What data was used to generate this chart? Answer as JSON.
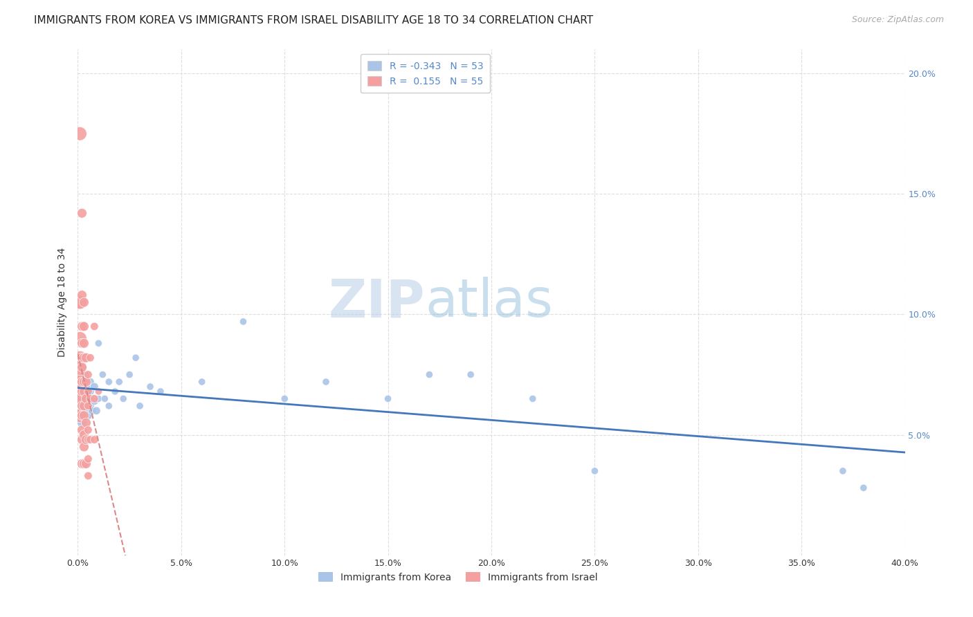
{
  "title": "IMMIGRANTS FROM KOREA VS IMMIGRANTS FROM ISRAEL DISABILITY AGE 18 TO 34 CORRELATION CHART",
  "source": "Source: ZipAtlas.com",
  "ylabel": "Disability Age 18 to 34",
  "xlim": [
    0.0,
    0.4
  ],
  "ylim": [
    0.0,
    0.21
  ],
  "xticks": [
    0.0,
    0.05,
    0.1,
    0.15,
    0.2,
    0.25,
    0.3,
    0.35,
    0.4
  ],
  "yticks": [
    0.05,
    0.1,
    0.15,
    0.2
  ],
  "watermark_zip": "ZIP",
  "watermark_atlas": "atlas",
  "korea_color": "#aac4e8",
  "israel_color": "#f4a0a0",
  "korea_line_color": "#4477bb",
  "israel_line_color": "#dd8888",
  "right_axis_color": "#5588cc",
  "korea_R": -0.343,
  "korea_N": 53,
  "israel_R": 0.155,
  "israel_N": 55,
  "korea_scatter_x": [
    0.001,
    0.001,
    0.001,
    0.001,
    0.001,
    0.002,
    0.002,
    0.002,
    0.002,
    0.002,
    0.003,
    0.003,
    0.003,
    0.003,
    0.004,
    0.004,
    0.004,
    0.005,
    0.005,
    0.005,
    0.006,
    0.006,
    0.006,
    0.007,
    0.007,
    0.008,
    0.008,
    0.009,
    0.01,
    0.01,
    0.012,
    0.013,
    0.015,
    0.015,
    0.018,
    0.02,
    0.022,
    0.025,
    0.028,
    0.03,
    0.035,
    0.04,
    0.06,
    0.08,
    0.1,
    0.12,
    0.15,
    0.17,
    0.19,
    0.22,
    0.25,
    0.37,
    0.38
  ],
  "korea_scatter_y": [
    0.072,
    0.078,
    0.068,
    0.063,
    0.058,
    0.076,
    0.072,
    0.068,
    0.062,
    0.055,
    0.075,
    0.07,
    0.065,
    0.058,
    0.07,
    0.065,
    0.06,
    0.068,
    0.063,
    0.058,
    0.072,
    0.068,
    0.062,
    0.065,
    0.06,
    0.07,
    0.064,
    0.06,
    0.088,
    0.065,
    0.075,
    0.065,
    0.072,
    0.062,
    0.068,
    0.072,
    0.065,
    0.075,
    0.082,
    0.062,
    0.07,
    0.068,
    0.072,
    0.097,
    0.065,
    0.072,
    0.065,
    0.075,
    0.075,
    0.065,
    0.035,
    0.035,
    0.028
  ],
  "israel_scatter_x": [
    0.001,
    0.001,
    0.001,
    0.001,
    0.001,
    0.001,
    0.001,
    0.001,
    0.001,
    0.001,
    0.001,
    0.002,
    0.002,
    0.002,
    0.002,
    0.002,
    0.002,
    0.002,
    0.002,
    0.002,
    0.002,
    0.002,
    0.002,
    0.002,
    0.003,
    0.003,
    0.003,
    0.003,
    0.003,
    0.003,
    0.003,
    0.003,
    0.003,
    0.003,
    0.003,
    0.004,
    0.004,
    0.004,
    0.004,
    0.004,
    0.004,
    0.005,
    0.005,
    0.005,
    0.005,
    0.005,
    0.005,
    0.005,
    0.006,
    0.006,
    0.006,
    0.008,
    0.008,
    0.008,
    0.01
  ],
  "israel_scatter_y": [
    0.175,
    0.105,
    0.105,
    0.09,
    0.082,
    0.078,
    0.075,
    0.072,
    0.068,
    0.065,
    0.058,
    0.142,
    0.108,
    0.095,
    0.088,
    0.082,
    0.078,
    0.072,
    0.068,
    0.062,
    0.058,
    0.052,
    0.048,
    0.038,
    0.105,
    0.095,
    0.088,
    0.082,
    0.072,
    0.068,
    0.062,
    0.058,
    0.05,
    0.045,
    0.038,
    0.082,
    0.072,
    0.065,
    0.055,
    0.048,
    0.038,
    0.075,
    0.068,
    0.062,
    0.052,
    0.048,
    0.04,
    0.033,
    0.082,
    0.065,
    0.048,
    0.095,
    0.065,
    0.048,
    0.068
  ],
  "background_color": "#ffffff",
  "grid_color": "#dddddd",
  "title_fontsize": 11,
  "axis_label_fontsize": 10
}
